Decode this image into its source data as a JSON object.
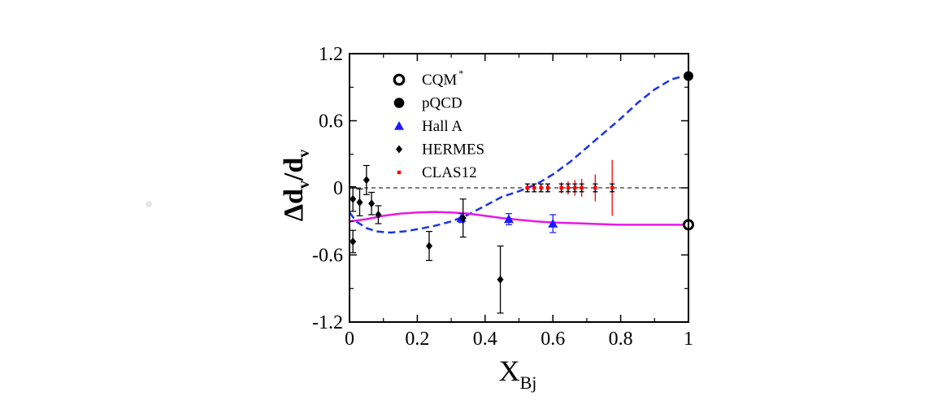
{
  "chart_data": {
    "type": "scatter",
    "xlabel": "X",
    "xlabel_sub": "Bj",
    "ylabel": "Δd",
    "ylabel_sub": "v",
    "ylabel_mid": "/d",
    "ylabel_sub2": "v",
    "xlim": [
      0,
      1
    ],
    "ylim": [
      -1.2,
      1.2
    ],
    "x_ticks": [
      0,
      0.2,
      0.4,
      0.6,
      0.8,
      1
    ],
    "x_tick_labels": [
      "0",
      "0.2",
      "0.4",
      "0.6",
      "0.8",
      "1"
    ],
    "y_ticks": [
      -1.2,
      -0.6,
      0,
      0.6,
      1.2
    ],
    "y_tick_labels": [
      "-1.2",
      "-0.6",
      "0",
      "0.6",
      "1.2"
    ],
    "grid": false,
    "legend_position": "top-left",
    "legend": [
      {
        "label": "CQM",
        "sup": "*",
        "marker": "open-circle",
        "color": "#000000"
      },
      {
        "label": "pQCD",
        "marker": "filled-circle",
        "color": "#000000"
      },
      {
        "label": "Hall A",
        "marker": "triangle",
        "color": "#1a1aff"
      },
      {
        "label": "HERMES",
        "marker": "diamond",
        "color": "#000000"
      },
      {
        "label": "CLAS12",
        "marker": "square",
        "color": "#ff0000"
      }
    ],
    "series": [
      {
        "name": "CQM",
        "marker": "open-circle",
        "color": "#000000",
        "points": [
          {
            "x": 1.0,
            "y": -0.33
          }
        ]
      },
      {
        "name": "pQCD",
        "marker": "filled-circle",
        "color": "#000000",
        "points": [
          {
            "x": 1.0,
            "y": 1.0
          }
        ]
      },
      {
        "name": "Hall A",
        "marker": "triangle",
        "color": "#1a1aff",
        "points": [
          {
            "x": 0.33,
            "y": -0.27,
            "err": 0.04
          },
          {
            "x": 0.47,
            "y": -0.28,
            "err": 0.05
          },
          {
            "x": 0.6,
            "y": -0.32,
            "err": 0.08
          }
        ]
      },
      {
        "name": "HERMES",
        "marker": "diamond",
        "color": "#000000",
        "points": [
          {
            "x": 0.01,
            "y": -0.1,
            "err": 0.11
          },
          {
            "x": 0.01,
            "y": -0.48,
            "err": 0.1
          },
          {
            "x": 0.03,
            "y": -0.13,
            "err": 0.12
          },
          {
            "x": 0.05,
            "y": 0.07,
            "err": 0.13
          },
          {
            "x": 0.065,
            "y": -0.14,
            "err": 0.1
          },
          {
            "x": 0.085,
            "y": -0.24,
            "err": 0.08
          },
          {
            "x": 0.235,
            "y": -0.52,
            "err": 0.13
          },
          {
            "x": 0.335,
            "y": -0.27,
            "err": 0.17
          },
          {
            "x": 0.445,
            "y": -0.82,
            "err": 0.3
          }
        ]
      },
      {
        "name": "CLAS12",
        "marker": "square",
        "color": "#ff0000",
        "points": [
          {
            "x": 0.525,
            "y": 0.0,
            "err": 0.035
          },
          {
            "x": 0.545,
            "y": 0.0,
            "err": 0.035
          },
          {
            "x": 0.565,
            "y": 0.0,
            "err": 0.035
          },
          {
            "x": 0.585,
            "y": 0.0,
            "err": 0.04
          },
          {
            "x": 0.625,
            "y": 0.0,
            "err": 0.05
          },
          {
            "x": 0.645,
            "y": 0.0,
            "err": 0.06
          },
          {
            "x": 0.665,
            "y": 0.0,
            "err": 0.07
          },
          {
            "x": 0.685,
            "y": 0.0,
            "err": 0.08
          },
          {
            "x": 0.725,
            "y": 0.0,
            "err": 0.12
          },
          {
            "x": 0.775,
            "y": 0.0,
            "err": 0.25
          }
        ]
      }
    ],
    "curves": [
      {
        "name": "dashed-blue-curve",
        "color": "#1a33e6",
        "style": "dashed",
        "points": [
          [
            0.0,
            -0.22
          ],
          [
            0.02,
            -0.3
          ],
          [
            0.05,
            -0.36
          ],
          [
            0.08,
            -0.39
          ],
          [
            0.12,
            -0.4
          ],
          [
            0.16,
            -0.39
          ],
          [
            0.2,
            -0.37
          ],
          [
            0.25,
            -0.34
          ],
          [
            0.3,
            -0.3
          ],
          [
            0.35,
            -0.24
          ],
          [
            0.4,
            -0.16
          ],
          [
            0.45,
            -0.08
          ],
          [
            0.5,
            -0.03
          ],
          [
            0.55,
            0.03
          ],
          [
            0.6,
            0.12
          ],
          [
            0.65,
            0.23
          ],
          [
            0.7,
            0.36
          ],
          [
            0.75,
            0.49
          ],
          [
            0.8,
            0.62
          ],
          [
            0.85,
            0.76
          ],
          [
            0.9,
            0.88
          ],
          [
            0.95,
            0.97
          ],
          [
            0.98,
            0.995
          ],
          [
            1.0,
            1.0
          ]
        ]
      },
      {
        "name": "solid-magenta-curve",
        "color": "#e619e6",
        "style": "solid",
        "points": [
          [
            0.0,
            -0.3
          ],
          [
            0.05,
            -0.28
          ],
          [
            0.1,
            -0.25
          ],
          [
            0.15,
            -0.23
          ],
          [
            0.2,
            -0.22
          ],
          [
            0.25,
            -0.215
          ],
          [
            0.3,
            -0.22
          ],
          [
            0.35,
            -0.23
          ],
          [
            0.4,
            -0.25
          ],
          [
            0.45,
            -0.27
          ],
          [
            0.5,
            -0.285
          ],
          [
            0.55,
            -0.3
          ],
          [
            0.6,
            -0.31
          ],
          [
            0.65,
            -0.315
          ],
          [
            0.7,
            -0.32
          ],
          [
            0.75,
            -0.325
          ],
          [
            0.8,
            -0.33
          ],
          [
            0.85,
            -0.33
          ],
          [
            0.9,
            -0.33
          ],
          [
            0.95,
            -0.33
          ],
          [
            1.0,
            -0.33
          ]
        ]
      },
      {
        "name": "zero-reference-line",
        "color": "#000000",
        "style": "dashed-thin",
        "points": [
          [
            0,
            0
          ],
          [
            1,
            0
          ]
        ]
      }
    ]
  }
}
